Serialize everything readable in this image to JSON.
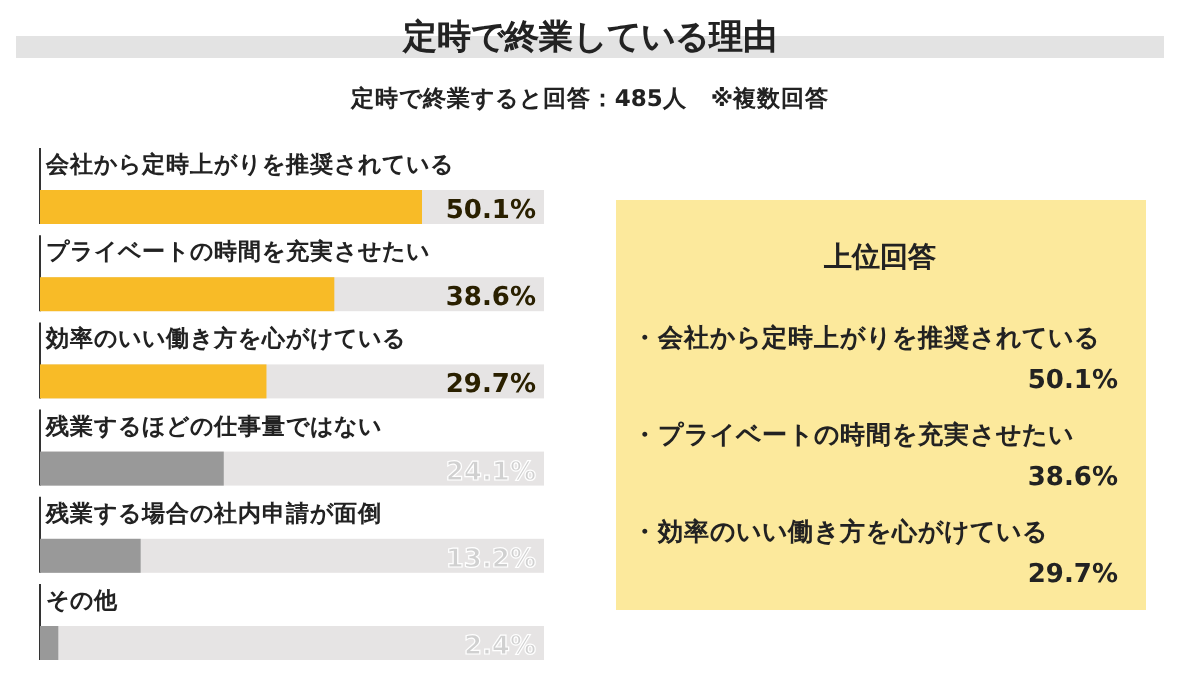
{
  "chart_data": [
    {
      "type": "bar",
      "orientation": "horizontal",
      "title": "定時で終業している理由",
      "subtitle": "定時で終業すると回答：485人　※複数回答",
      "categories": [
        "会社から定時上がりを推奨されている",
        "プライベートの時間を充実させたい",
        "効率のいい働き方を心がけている",
        "残業するほどの仕事量ではない",
        "残業する場合の社内申請が面倒",
        "その他"
      ],
      "values": [
        50.1,
        38.6,
        29.7,
        24.1,
        13.2,
        2.4
      ],
      "value_labels": [
        "50.1%",
        "38.6%",
        "29.7%",
        "24.1%",
        "13.2%",
        "2.4%"
      ],
      "colors": [
        "#f8bb27",
        "#f8bb27",
        "#f8bb27",
        "#999999",
        "#999999",
        "#999999"
      ]
    },
    {
      "type": "other",
      "title": "上位回答",
      "annotations": [
        "・会社から定時上がりを推奨されている",
        "50.1%",
        "・プライベートの時間を充実させたい",
        "38.6%",
        "・効率のいい働き方を心がけている",
        "29.7%"
      ]
    }
  ]
}
